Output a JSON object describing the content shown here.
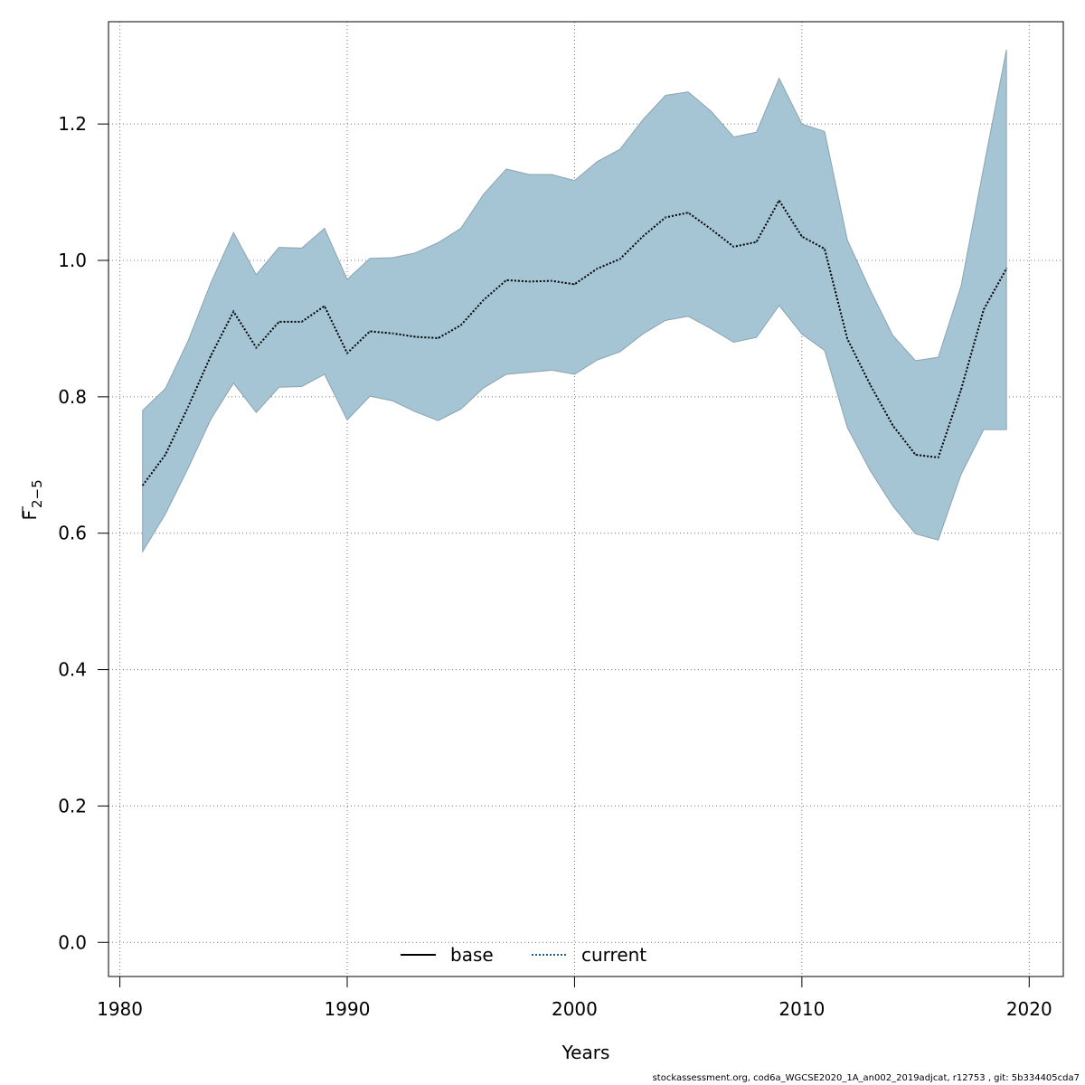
{
  "chart_data": {
    "type": "area",
    "xlabel": "Years",
    "ylabel": "F",
    "ylabel_subscript": "2−5",
    "xlim": [
      1979.5,
      2021.5
    ],
    "ylim": [
      -0.05,
      1.35
    ],
    "x_ticks": [
      1980,
      1990,
      2000,
      2010,
      2020
    ],
    "y_ticks": [
      0.0,
      0.2,
      0.4,
      0.6,
      0.8,
      1.0,
      1.2
    ],
    "y_tick_labels": [
      "0.0",
      "0.2",
      "0.4",
      "0.6",
      "0.8",
      "1.0",
      "1.2"
    ],
    "grid": true,
    "legend_position": "bottom-center",
    "legend": [
      {
        "label": "base",
        "style": "solid",
        "color": "#000000"
      },
      {
        "label": "current",
        "style": "dotted",
        "color": "#1f5f8b"
      }
    ],
    "band_color": "#a5c4d4",
    "band_edge_color": "#8aa4b0",
    "x": [
      1981,
      1982,
      1983,
      1984,
      1985,
      1986,
      1987,
      1988,
      1989,
      1990,
      1991,
      1992,
      1993,
      1994,
      1995,
      1996,
      1997,
      1998,
      1999,
      2000,
      2001,
      2002,
      2003,
      2004,
      2005,
      2006,
      2007,
      2008,
      2009,
      2010,
      2011,
      2012,
      2013,
      2014,
      2015,
      2016,
      2017,
      2018,
      2019
    ],
    "series": [
      {
        "name": "current",
        "values": [
          0.67,
          0.715,
          0.785,
          0.86,
          0.925,
          0.872,
          0.91,
          0.91,
          0.933,
          0.864,
          0.896,
          0.893,
          0.888,
          0.886,
          0.905,
          0.942,
          0.971,
          0.969,
          0.97,
          0.965,
          0.988,
          1.002,
          1.035,
          1.063,
          1.07,
          1.046,
          1.02,
          1.027,
          1.088,
          1.035,
          1.017,
          0.885,
          0.818,
          0.758,
          0.715,
          0.711,
          0.81,
          0.928,
          0.988
        ],
        "lower": [
          0.573,
          0.628,
          0.695,
          0.767,
          0.82,
          0.777,
          0.814,
          0.815,
          0.833,
          0.766,
          0.801,
          0.794,
          0.778,
          0.765,
          0.782,
          0.813,
          0.833,
          0.836,
          0.839,
          0.833,
          0.854,
          0.866,
          0.892,
          0.912,
          0.918,
          0.9,
          0.88,
          0.887,
          0.934,
          0.892,
          0.868,
          0.755,
          0.692,
          0.64,
          0.599,
          0.59,
          0.686,
          0.752,
          0.752
        ],
        "upper": [
          0.78,
          0.812,
          0.882,
          0.967,
          1.041,
          0.979,
          1.019,
          1.018,
          1.047,
          0.972,
          1.003,
          1.004,
          1.011,
          1.026,
          1.047,
          1.097,
          1.134,
          1.126,
          1.126,
          1.117,
          1.145,
          1.163,
          1.206,
          1.242,
          1.247,
          1.219,
          1.181,
          1.188,
          1.267,
          1.2,
          1.189,
          1.03,
          0.957,
          0.89,
          0.853,
          0.858,
          0.962,
          1.137,
          1.309
        ]
      }
    ]
  },
  "footer_text": "stockassessment.org, cod6a_WGCSE2020_1A_an002_2019adjcat, r12753 , git: 5b334405cda7"
}
